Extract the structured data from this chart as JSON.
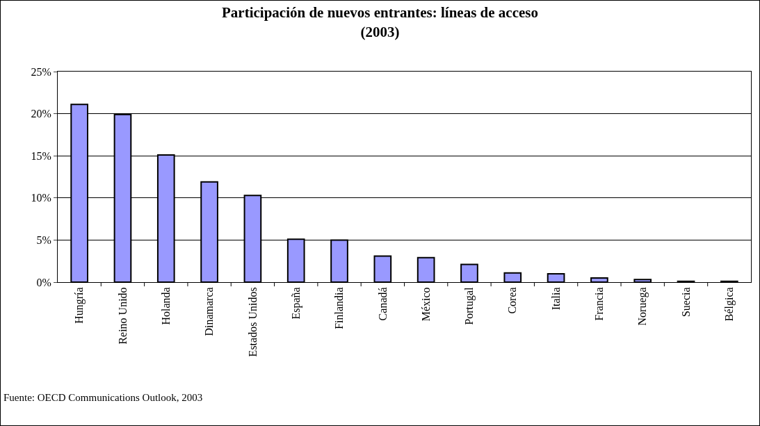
{
  "chart_data": {
    "type": "bar",
    "title": "Participación de nuevos entrantes: líneas de acceso\n(2003)",
    "categories": [
      "Hungría",
      "Reino Unido",
      "Holanda",
      "Dinamarca",
      "Estados Unidos",
      "España",
      "Finlandia",
      "Canadá",
      "México",
      "Portugal",
      "Corea",
      "Italia",
      "Francia",
      "Noruega",
      "Suecia",
      "Bélgica"
    ],
    "values": [
      21.1,
      19.9,
      15.1,
      11.9,
      10.3,
      5.1,
      5.0,
      3.1,
      2.9,
      2.1,
      1.1,
      1.0,
      0.5,
      0.3,
      0.1,
      0.1
    ],
    "color": "#9999ff",
    "ylim": [
      0,
      25
    ],
    "yticks": [
      {
        "value": 0,
        "label": "0%"
      },
      {
        "value": 5,
        "label": "5%"
      },
      {
        "value": 10,
        "label": "10%"
      },
      {
        "value": 15,
        "label": "15%"
      },
      {
        "value": 20,
        "label": "20%"
      },
      {
        "value": 25,
        "label": "25%"
      }
    ],
    "grid": "y",
    "annotations": [
      "Fuente: OECD Communications Outlook, 2003"
    ]
  }
}
